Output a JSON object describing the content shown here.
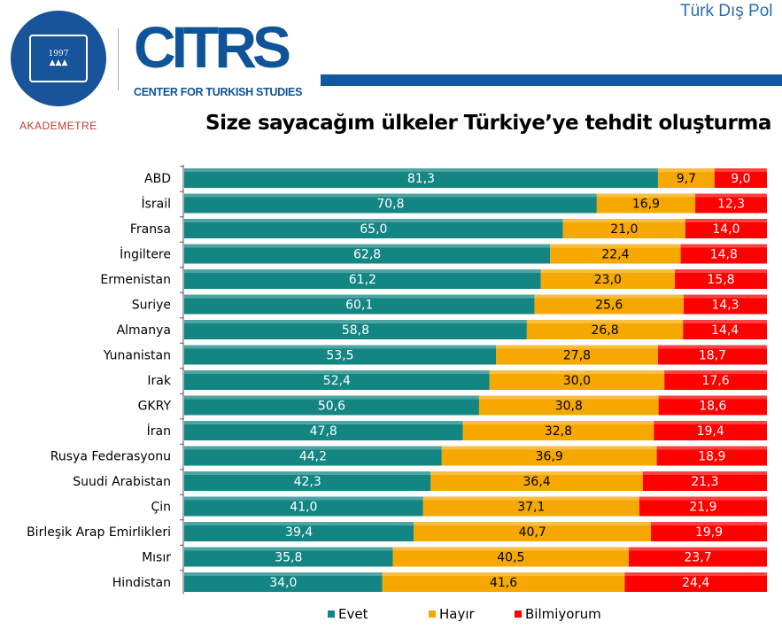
{
  "header": {
    "top_right": "Türk Dış Pol"
  },
  "logos": {
    "seal": "KADİR HAS ÜNİVERSİTESİ 1997",
    "citrs": "CITRS",
    "citrs_sub": "CENTER FOR TURKISH STUDIES",
    "akademetre": "AKADEMETRE"
  },
  "colors": {
    "evet": "#138683",
    "hayir": "#f6a800",
    "bilmiyorum": "#ff0000"
  },
  "chart_data": {
    "type": "bar",
    "orientation": "horizontal-stacked-100",
    "title": "Size sayacağım ülkeler Türkiye’ye tehdit oluşturma",
    "categories": [
      "ABD",
      "İsrail",
      "Fransa",
      "İngiltere",
      "Ermenistan",
      "Suriye",
      "Almanya",
      "Yunanistan",
      "Irak",
      "GKRY",
      "İran",
      "Rusya Federasyonu",
      "Suudi Arabistan",
      "Çin",
      "Birleşik Arap Emirlikleri",
      "Mısır",
      "Hindistan"
    ],
    "series": [
      {
        "name": "Evet",
        "values": [
          81.3,
          70.8,
          65.0,
          62.8,
          61.2,
          60.1,
          58.8,
          53.5,
          52.4,
          50.6,
          47.8,
          44.2,
          42.3,
          41.0,
          39.4,
          35.8,
          34.0
        ]
      },
      {
        "name": "Hayır",
        "values": [
          9.7,
          16.9,
          21.0,
          22.4,
          23.0,
          25.6,
          26.8,
          27.8,
          30.0,
          30.8,
          32.8,
          36.9,
          36.4,
          37.1,
          40.7,
          40.5,
          41.6
        ]
      },
      {
        "name": "Bilmiyorum",
        "values": [
          9.0,
          12.3,
          14.0,
          14.8,
          15.8,
          14.3,
          14.4,
          18.7,
          17.6,
          18.6,
          19.4,
          18.9,
          21.3,
          21.9,
          19.9,
          23.7,
          24.4
        ]
      }
    ],
    "legend": "bottom",
    "xlim": [
      0,
      100
    ],
    "grid": false
  }
}
